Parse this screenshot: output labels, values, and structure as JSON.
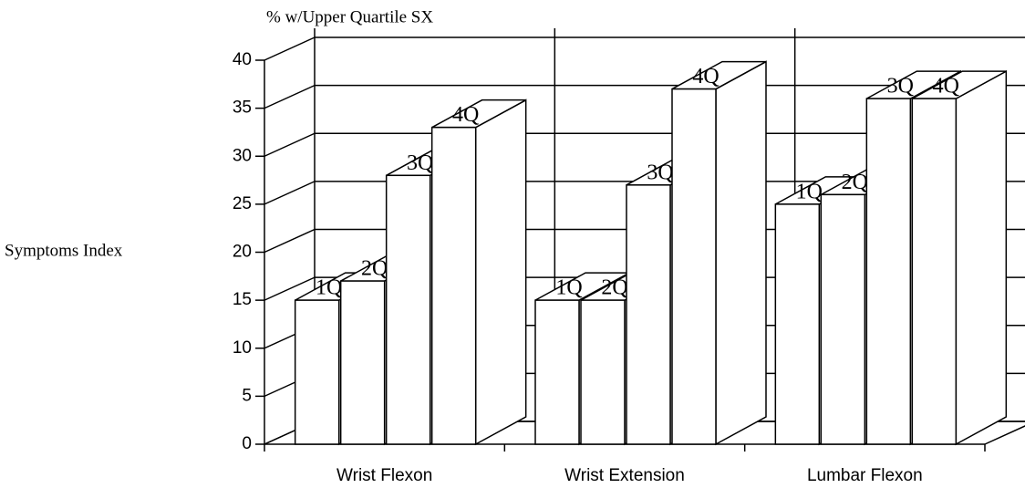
{
  "chart_data": {
    "type": "bar3d",
    "title": "% w/Upper Quartile SX",
    "y_label": "Symptoms Index",
    "categories": [
      "Wrist Flexon",
      "Wrist Extension",
      "Lumbar Flexon"
    ],
    "series": [
      {
        "name": "1Q",
        "color": "#ffffff",
        "values": [
          15,
          15,
          25
        ]
      },
      {
        "name": "2Q",
        "color": "#ffffff",
        "values": [
          17,
          15,
          26
        ]
      },
      {
        "name": "3Q",
        "color": "#ffffff",
        "values": [
          28,
          27,
          36
        ]
      },
      {
        "name": "4Q",
        "color": "#ffffff",
        "values": [
          33,
          37,
          36
        ]
      }
    ],
    "ylim": [
      0,
      40
    ],
    "yticks": [
      0,
      5,
      10,
      15,
      20,
      25,
      30,
      35,
      40
    ],
    "grid": true
  }
}
